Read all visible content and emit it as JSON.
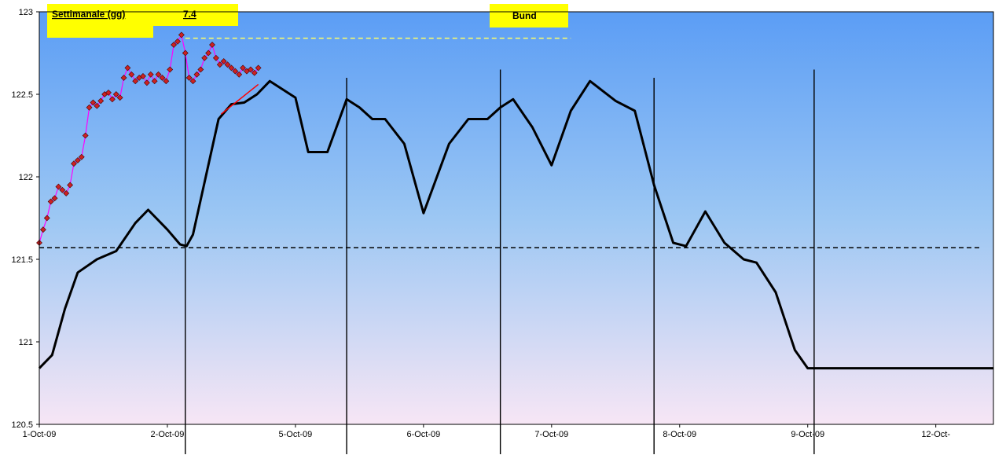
{
  "labels": {
    "period_label": "Settimanale (gg)",
    "period_value": "7.4",
    "instrument": "Bund"
  },
  "colors": {
    "bg_top": "#5b9df5",
    "bg_mid": "#9cc7f3",
    "bg_bottom": "#f7e6f5",
    "label_box": "#ffff00",
    "cycle_line": "#000000",
    "price_line": "#ff00ff",
    "price_marker": "#cc2222",
    "trend_line": "#ff0000",
    "dashed_level": "#000000",
    "dashed_top": "#ffff66"
  },
  "chart_data": {
    "type": "line",
    "xlabel": "",
    "ylabel": "",
    "ylim": [
      120.5,
      123
    ],
    "y_ticks": [
      "123",
      "122.5",
      "122",
      "121.5",
      "121",
      "120.5"
    ],
    "x_ticks": [
      "1-Oct-09",
      "2-Oct-09",
      "5-Oct-09",
      "6-Oct-09",
      "7-Oct-09",
      "8-Oct-09",
      "9-Oct-09",
      "12-Oct-"
    ],
    "xlim": [
      0,
      7.45
    ],
    "grid": false,
    "legend": "none",
    "cycle": {
      "x": [
        0,
        0.1,
        0.2,
        0.3,
        0.45,
        0.6,
        0.75,
        0.85,
        1.0,
        1.1,
        1.15,
        1.2,
        1.3,
        1.4,
        1.5,
        1.6,
        1.7,
        1.8,
        2.0,
        2.1,
        2.25,
        2.4,
        2.5,
        2.6,
        2.7,
        2.85,
        3.0,
        3.2,
        3.35,
        3.5,
        3.6,
        3.7,
        3.85,
        4.0,
        4.15,
        4.3,
        4.4,
        4.5,
        4.65,
        4.8,
        4.95,
        5.05,
        5.2,
        5.35,
        5.5,
        5.6,
        5.75,
        5.9,
        6.0,
        6.1,
        6.2,
        6.3,
        6.4,
        6.5,
        6.65,
        6.8,
        7.0,
        7.1,
        7.25,
        7.35,
        7.45
      ],
      "y": [
        120.84,
        120.92,
        121.2,
        121.42,
        121.5,
        121.55,
        121.72,
        121.8,
        121.68,
        121.59,
        121.58,
        121.65,
        122.0,
        122.35,
        122.44,
        122.45,
        122.5,
        122.58,
        122.48,
        122.15,
        122.15,
        122.47,
        122.42,
        122.35,
        122.35,
        122.2,
        121.78,
        122.2,
        122.35,
        122.35,
        122.42,
        122.47,
        122.3,
        122.07,
        122.4,
        122.58,
        122.52,
        122.46,
        122.4,
        121.95,
        121.6,
        121.58,
        121.79,
        121.6,
        121.5,
        121.48,
        121.3,
        120.95,
        120.84,
        120.84,
        120.84,
        120.84,
        120.84,
        120.84,
        120.84,
        120.84,
        120.84,
        120.84,
        120.84,
        120.84,
        120.84
      ],
      "days_offset_note": ""
    },
    "price": {
      "x": [
        0,
        0.03,
        0.06,
        0.09,
        0.12,
        0.15,
        0.18,
        0.21,
        0.24,
        0.27,
        0.3,
        0.33,
        0.36,
        0.39,
        0.42,
        0.45,
        0.48,
        0.51,
        0.54,
        0.57,
        0.6,
        0.63,
        0.66,
        0.69,
        0.72,
        0.75,
        0.78,
        0.81,
        0.84,
        0.87,
        0.9,
        0.93,
        0.96,
        0.99,
        1.02,
        1.05,
        1.08,
        1.11,
        1.14,
        1.17,
        1.2,
        1.23,
        1.26,
        1.29,
        1.32,
        1.35,
        1.38,
        1.41,
        1.44,
        1.47,
        1.5,
        1.53,
        1.56,
        1.59,
        1.62,
        1.65,
        1.68,
        1.71
      ],
      "y": [
        121.6,
        121.68,
        121.75,
        121.85,
        121.87,
        121.94,
        121.92,
        121.9,
        121.95,
        122.08,
        122.1,
        122.12,
        122.25,
        122.42,
        122.45,
        122.43,
        122.46,
        122.5,
        122.51,
        122.47,
        122.5,
        122.48,
        122.6,
        122.66,
        122.62,
        122.58,
        122.6,
        122.61,
        122.57,
        122.62,
        122.58,
        122.62,
        122.6,
        122.58,
        122.65,
        122.8,
        122.82,
        122.86,
        122.75,
        122.6,
        122.58,
        122.62,
        122.65,
        122.72,
        122.75,
        122.8,
        122.72,
        122.68,
        122.7,
        122.68,
        122.66,
        122.64,
        122.62,
        122.66,
        122.64,
        122.65,
        122.63,
        122.66
      ]
    },
    "trend": {
      "x": [
        1.42,
        1.71
      ],
      "y": [
        122.38,
        122.56
      ]
    },
    "level_line": 121.57,
    "top_line": {
      "x": [
        1.14,
        4.15
      ],
      "y": 122.84
    },
    "cycle_lows_x": [
      1.14,
      2.4,
      3.6,
      4.8,
      6.05
    ]
  }
}
